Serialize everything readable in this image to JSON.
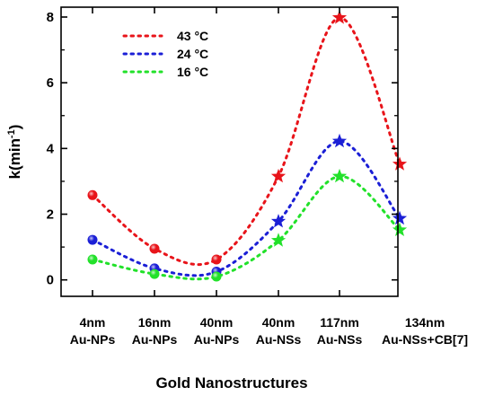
{
  "chart_data": {
    "type": "line",
    "xlabel": "Gold Nanostructures",
    "ylabel": "k(min",
    "ylabel_superscript": "-1",
    "ylabel_close": ")",
    "categories": [
      [
        "4nm",
        "Au-NPs"
      ],
      [
        "16nm",
        "Au-NPs"
      ],
      [
        "40nm",
        "Au-NPs"
      ],
      [
        "40nm",
        "Au-NSs"
      ],
      [
        "117nm",
        "Au-NSs"
      ],
      [
        "134nm",
        "Au-NSs+CB[7]"
      ]
    ],
    "ylim": [
      -0.5,
      8.3
    ],
    "yticks": [
      0,
      2,
      4,
      6,
      8
    ],
    "legend_position": "top-left",
    "grid": false,
    "series": [
      {
        "name": "43 °C",
        "color": "#e8141a",
        "values": [
          2.58,
          0.95,
          0.62,
          3.15,
          7.98,
          3.52
        ],
        "markers": [
          "sphere",
          "sphere",
          "sphere",
          "star",
          "star",
          "star"
        ]
      },
      {
        "name": "24 °C",
        "color": "#1b1fd6",
        "values": [
          1.22,
          0.35,
          0.25,
          1.78,
          4.22,
          1.87
        ],
        "markers": [
          "sphere",
          "sphere",
          "sphere",
          "star",
          "star",
          "star"
        ]
      },
      {
        "name": "16 °C",
        "color": "#22e12a",
        "values": [
          0.62,
          0.18,
          0.1,
          1.2,
          3.15,
          1.52
        ],
        "markers": [
          "sphere",
          "sphere",
          "sphere",
          "star",
          "star",
          "star"
        ]
      }
    ]
  }
}
